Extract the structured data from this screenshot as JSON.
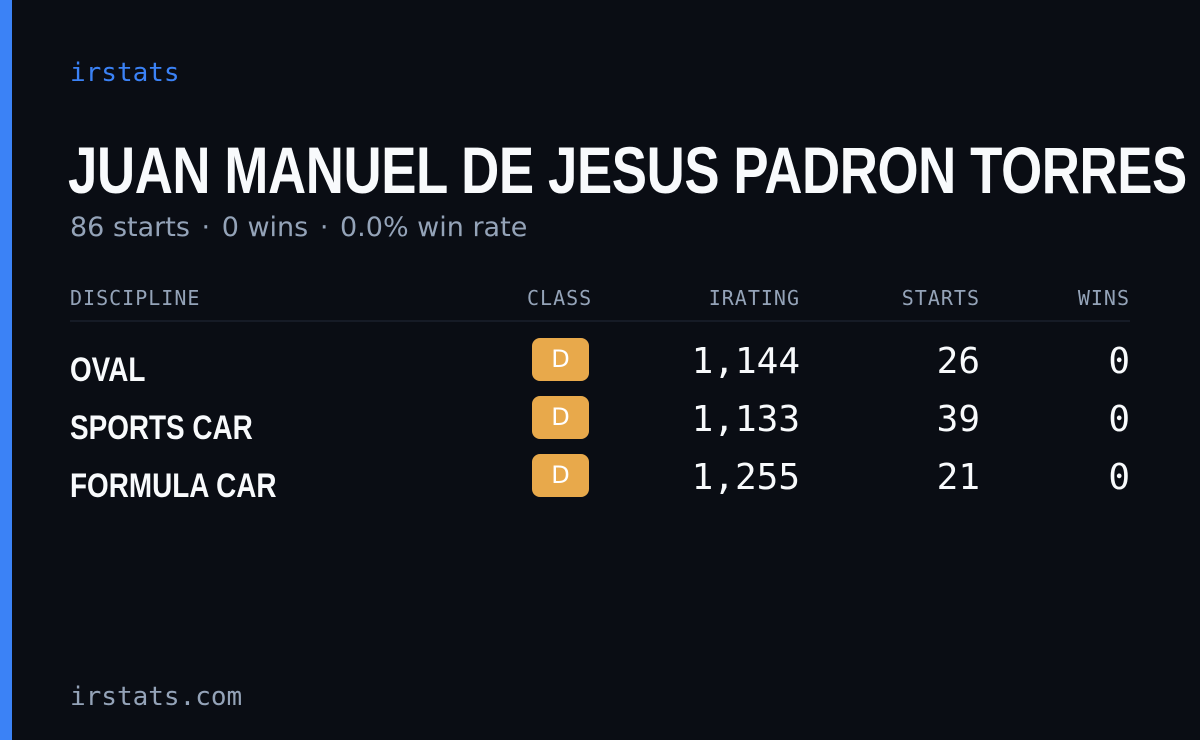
{
  "brand": "irstats",
  "driver": {
    "name": "JUAN MANUEL DE JESUS PADRON TORRES",
    "summary": {
      "starts": "86 starts",
      "wins": "0 wins",
      "win_rate": "0.0% win rate",
      "separator": "·"
    }
  },
  "table": {
    "headers": {
      "discipline": "DISCIPLINE",
      "class": "CLASS",
      "irating": "IRATING",
      "starts": "STARTS",
      "wins": "WINS"
    },
    "rows": [
      {
        "discipline": "OVAL",
        "class": "D",
        "irating": "1,144",
        "starts": "26",
        "wins": "0"
      },
      {
        "discipline": "SPORTS CAR",
        "class": "D",
        "irating": "1,133",
        "starts": "39",
        "wins": "0"
      },
      {
        "discipline": "FORMULA CAR",
        "class": "D",
        "irating": "1,255",
        "starts": "21",
        "wins": "0"
      }
    ]
  },
  "footer": "irstats.com",
  "colors": {
    "background": "#0a0d14",
    "accent": "#3b82f6",
    "class_d": "#e8a94b",
    "muted_text": "#94a3b8",
    "primary_text": "#f8fafc"
  }
}
